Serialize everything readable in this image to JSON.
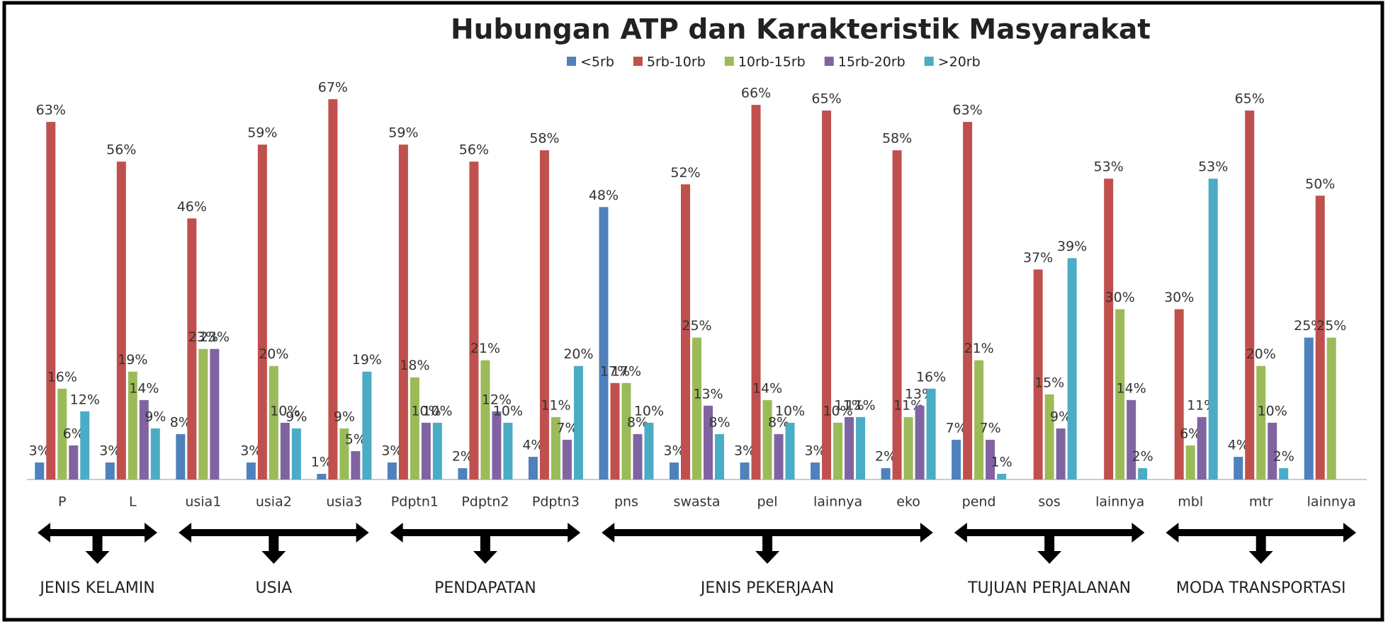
{
  "chart_data": {
    "type": "bar",
    "title": "Hubungan ATP dan Karakteristik Masyarakat",
    "categories": [
      "P",
      "L",
      "usia1",
      "usia2",
      "usia3",
      "Pdptn1",
      "Pdptn2",
      "Pdptn3",
      "pns",
      "swasta",
      "pel",
      "lainnya",
      "eko",
      "pend",
      "sos",
      "lainnya",
      "mbl",
      "mtr",
      "lainnya"
    ],
    "series": [
      {
        "name": "<5rb",
        "color": "#4f81bd",
        "values": [
          3,
          3,
          8,
          3,
          1,
          3,
          2,
          4,
          48,
          3,
          3,
          3,
          2,
          7,
          null,
          null,
          null,
          4,
          25
        ],
        "value_labels": [
          "3%",
          "3%",
          "8%",
          "3%",
          "1%",
          "3%",
          "2%",
          "4%",
          "48%",
          "3%",
          "3%",
          "3%",
          "2%",
          "7%",
          null,
          null,
          null,
          "4%",
          "25%"
        ]
      },
      {
        "name": "5rb-10rb",
        "color": "#c0504d",
        "values": [
          63,
          56,
          46,
          59,
          67,
          59,
          56,
          58,
          17,
          52,
          66,
          65,
          58,
          63,
          37,
          53,
          30,
          65,
          50
        ],
        "value_labels": [
          "63%",
          "56%",
          "46%",
          "59%",
          "67%",
          "59%",
          "56%",
          "58%",
          "17%",
          "52%",
          "66%",
          "65%",
          "58%",
          "63%",
          "37%",
          "53%",
          "30%",
          "65%",
          "50%"
        ]
      },
      {
        "name": "10rb-15rb",
        "color": "#9bbb59",
        "values": [
          16,
          19,
          23,
          20,
          9,
          18,
          21,
          11,
          17,
          25,
          14,
          10,
          11,
          21,
          15,
          30,
          6,
          20,
          25
        ],
        "value_labels": [
          "16%",
          "19%",
          "23%",
          "20%",
          "9%",
          "18%",
          "21%",
          "11%",
          "17%",
          "25%",
          "14%",
          "10%",
          "11%",
          "21%",
          "15%",
          "30%",
          "6%",
          "20%",
          "25%"
        ]
      },
      {
        "name": "15rb-20rb",
        "color": "#8064a2",
        "values": [
          6,
          14,
          23,
          10,
          5,
          10,
          12,
          7,
          8,
          13,
          8,
          11,
          13,
          7,
          9,
          14,
          11,
          10,
          null
        ],
        "value_labels": [
          "6%",
          "14%",
          "23%",
          "10%",
          "5%",
          "10%",
          "12%",
          "7%",
          "8%",
          "13%",
          "8%",
          "11%",
          "13%",
          "7%",
          "9%",
          "14%",
          "11%",
          "10%",
          null
        ]
      },
      {
        "name": ">20rb",
        "color": "#4bacc6",
        "values": [
          12,
          9,
          null,
          9,
          19,
          10,
          10,
          20,
          10,
          8,
          10,
          11,
          16,
          1,
          39,
          2,
          53,
          2,
          null
        ],
        "value_labels": [
          "12%",
          "9%",
          null,
          "9%",
          "19%",
          "10%",
          "10%",
          "20%",
          "10%",
          "8%",
          "10%",
          "11%",
          "16%",
          "1%",
          "39%",
          "2%",
          "53%",
          "2%",
          null
        ]
      }
    ],
    "groups": [
      "JENIS KELAMIN",
      "USIA",
      "PENDAPATAN",
      "JENIS PEKERJAAN",
      "TUJUAN PERJALANAN",
      "MODA TRANSPORTASI"
    ],
    "ylim": [
      0,
      70
    ]
  }
}
